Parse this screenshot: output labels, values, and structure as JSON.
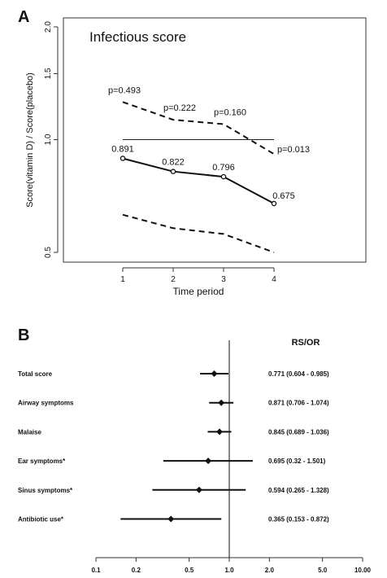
{
  "chart_data": [
    {
      "panel_label": "A",
      "type": "line",
      "title": "Infectious score",
      "xlabel": "Time period",
      "ylabel": "Score(vitamin D) / Score(placebo)",
      "x": [
        1,
        2,
        3,
        4
      ],
      "x_ticks": [
        "1",
        "2",
        "3",
        "4"
      ],
      "y_scale": "log",
      "ylim": [
        0.5,
        2.0
      ],
      "y_ticks": [
        {
          "value": 0.5,
          "label": "0.5"
        },
        {
          "value": 1.0,
          "label": "1.0"
        },
        {
          "value": 1.5,
          "label": "1.5"
        },
        {
          "value": 2.0,
          "label": "2.0"
        }
      ],
      "reference_line": 1.0,
      "grid": false,
      "series": [
        {
          "role": "estimate",
          "style": "solid",
          "marker": "circle",
          "values": [
            0.891,
            0.822,
            0.796,
            0.675
          ],
          "labels": [
            "0.891",
            "0.822",
            "0.796",
            "0.675"
          ]
        },
        {
          "role": "upper",
          "style": "dashed",
          "values": [
            1.26,
            1.13,
            1.1,
            0.915
          ]
        },
        {
          "role": "lower",
          "style": "dashed",
          "values": [
            0.63,
            0.58,
            0.56,
            0.5
          ]
        }
      ],
      "p_values": [
        "p=0.493",
        "p=0.222",
        "p=0.160",
        "p=0.013"
      ]
    },
    {
      "panel_label": "B",
      "type": "forest",
      "column_header": "RS/OR",
      "x_scale": "log",
      "xlim": [
        0.1,
        10.0
      ],
      "reference_line": 1.0,
      "x_ticks": [
        {
          "value": 0.1,
          "label": "0.1"
        },
        {
          "value": 0.2,
          "label": "0.2"
        },
        {
          "value": 0.5,
          "label": "0.5"
        },
        {
          "value": 1.0,
          "label": "1.0"
        },
        {
          "value": 2.0,
          "label": "2.0"
        },
        {
          "value": 5.0,
          "label": "5.0"
        },
        {
          "value": 10.0,
          "label": "10.00"
        }
      ],
      "rows": [
        {
          "label": "Total score",
          "estimate": 0.771,
          "lower": 0.604,
          "upper": 0.985,
          "text": "0.771 (0.604 - 0.985)"
        },
        {
          "label": "Airway symptoms",
          "estimate": 0.871,
          "lower": 0.706,
          "upper": 1.074,
          "text": "0.871 (0.706 - 1.074)"
        },
        {
          "label": "Malaise",
          "estimate": 0.845,
          "lower": 0.689,
          "upper": 1.036,
          "text": "0.845 (0.689 - 1.036)"
        },
        {
          "label": "Ear symptoms*",
          "estimate": 0.695,
          "lower": 0.32,
          "upper": 1.501,
          "text": "0.695 (0.32 - 1.501)"
        },
        {
          "label": "Sinus symptoms*",
          "estimate": 0.594,
          "lower": 0.265,
          "upper": 1.328,
          "text": "0.594 (0.265 - 1.328)"
        },
        {
          "label": "Antibiotic use*",
          "estimate": 0.365,
          "lower": 0.153,
          "upper": 0.872,
          "text": "0.365 (0.153 - 0.872)"
        }
      ]
    }
  ]
}
